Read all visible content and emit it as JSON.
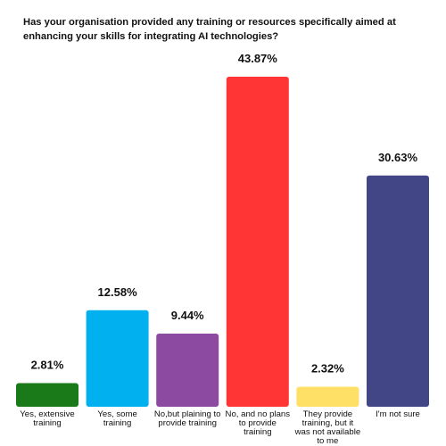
{
  "chart_data": {
    "type": "bar",
    "title": "Has your organisation provided any training or resources specifically aimed at enhancing your skills for integrating AI technologies?",
    "categories": [
      "Yes, extensive training",
      "Yes, some training",
      "No,but plaining to provide training",
      "No, and no plans to provide training",
      "They provide training, but it was not available to me",
      "I'm not sure"
    ],
    "values": [
      2.81,
      12.58,
      9.44,
      43.87,
      2.32,
      30.63
    ],
    "value_labels": [
      "2.81%",
      "12.58%",
      "9.44%",
      "43.87%",
      "2.32%",
      "30.63%"
    ],
    "colors": [
      "#1a7a1a",
      "#00b0ef",
      "#8c4aa0",
      "#ff3535",
      "#ffe066",
      "#434686"
    ],
    "xlabel": "",
    "ylabel": "",
    "ylim": [
      0,
      43.87
    ],
    "grid": false,
    "legend": "none"
  }
}
